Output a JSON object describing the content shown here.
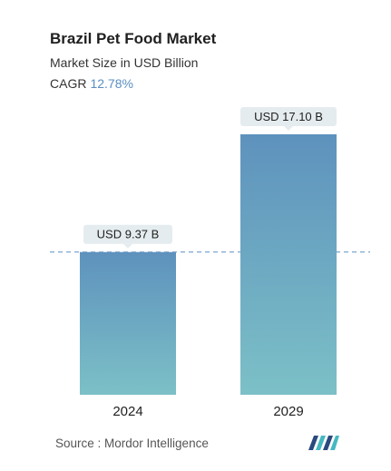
{
  "header": {
    "title": "Brazil Pet Food Market",
    "subtitle": "Market Size in USD Billion",
    "cagr_label": "CAGR",
    "cagr_value": "12.78%"
  },
  "footer": {
    "source": "Source :  Mordor Intelligence"
  },
  "colors": {
    "bar_top": "#5e92bd",
    "bar_bottom": "#7cc0c7",
    "label_bg": "#e5ecef",
    "dashed_line": "#5b8fc3",
    "cagr_accent": "#5b8fc3",
    "logo_dark": "#2a4a7f",
    "logo_teal": "#45b8c1"
  },
  "chart_data": {
    "type": "bar",
    "categories": [
      "2024",
      "2029"
    ],
    "values": [
      9.37,
      17.1
    ],
    "data_labels": [
      "USD 9.37 B",
      "USD 17.10 B"
    ],
    "reference_line": 9.37,
    "ylim": [
      0,
      17.1
    ],
    "grid": false,
    "legend": "none"
  }
}
